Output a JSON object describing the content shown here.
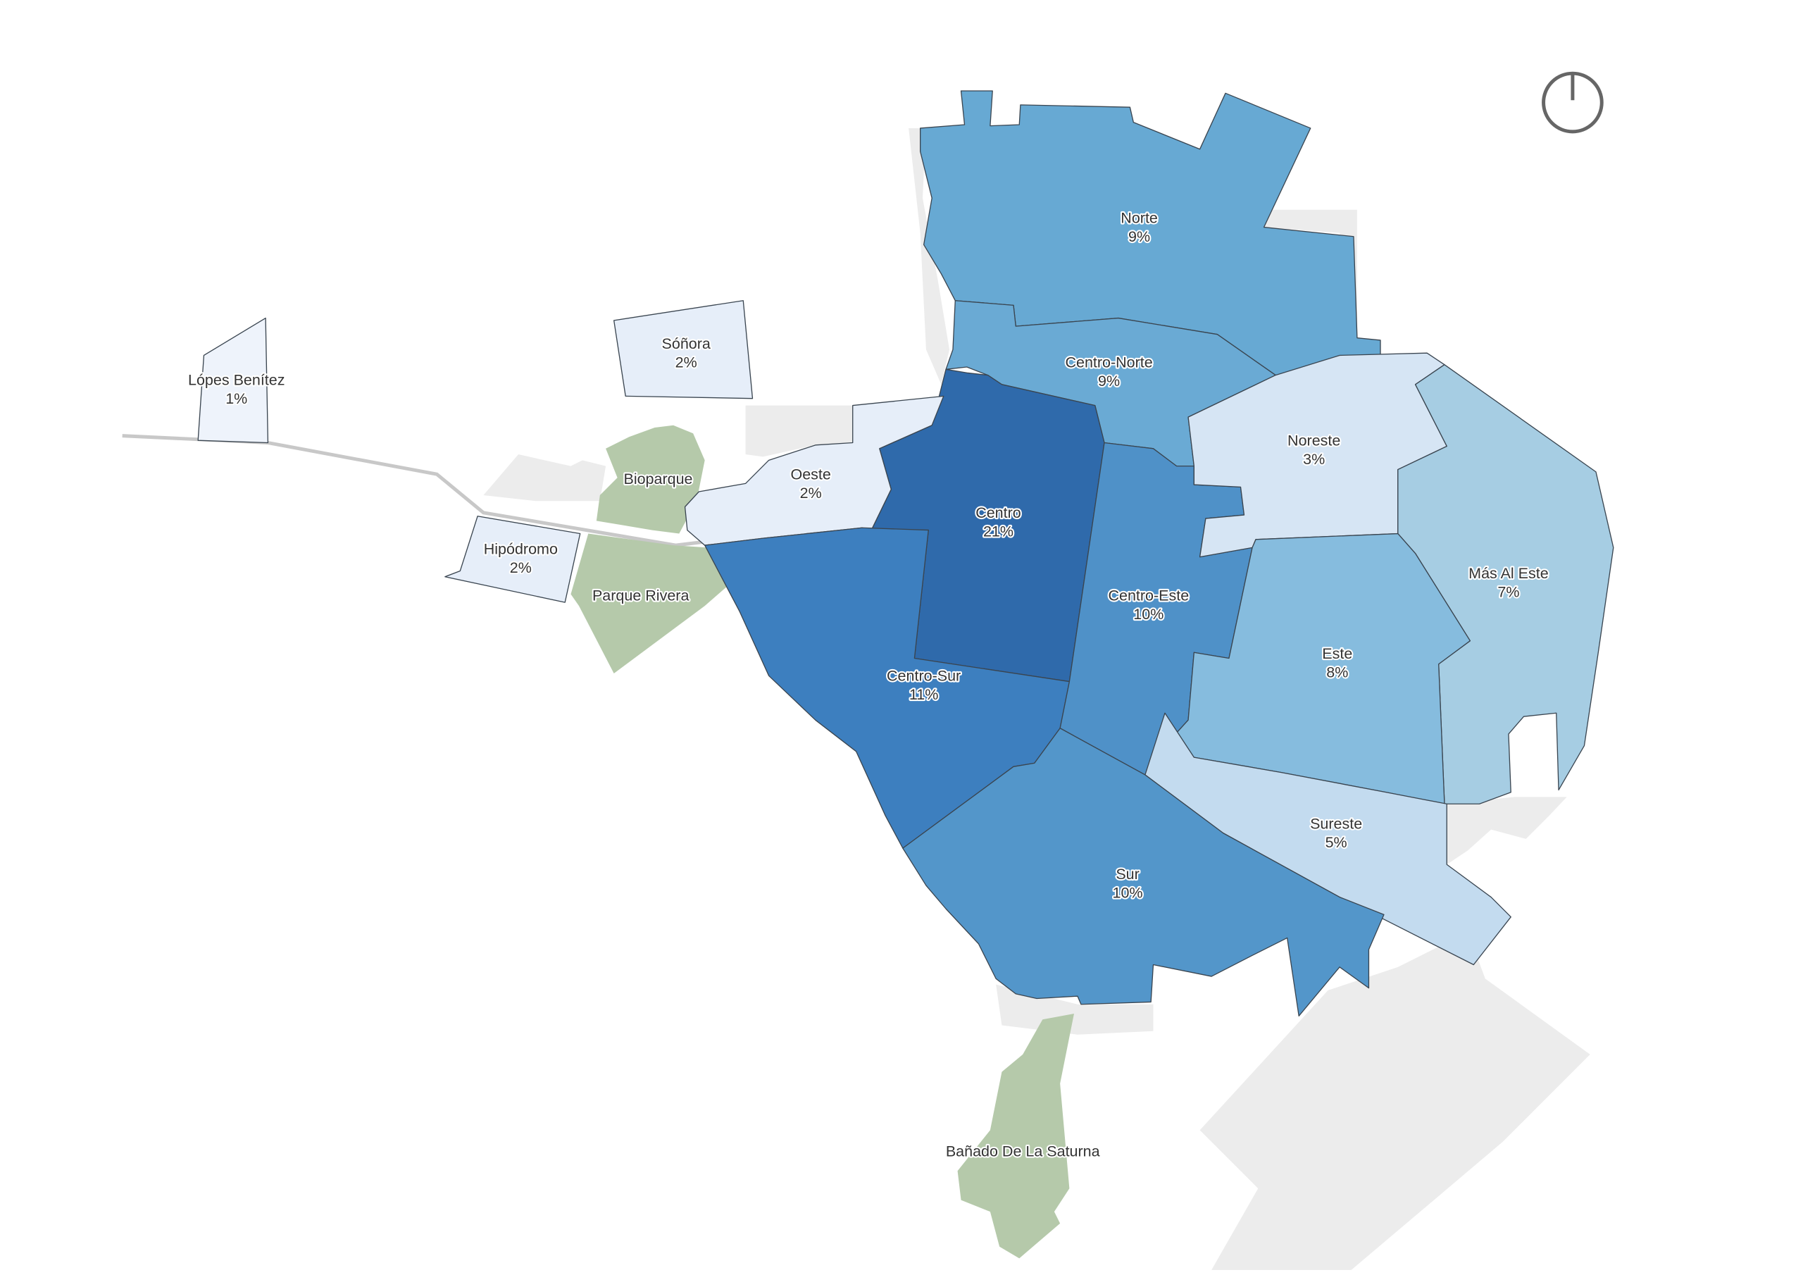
{
  "chart_data": {
    "type": "choropleth",
    "categories": [
      "Norte",
      "Centro-Norte",
      "Centro",
      "Oeste",
      "Centro-Sur",
      "Centro-Este",
      "Noreste",
      "Más Al Este",
      "Este",
      "Sureste",
      "Sur",
      "Lópes Benítez",
      "Sóñora",
      "Hipódromo"
    ],
    "values": [
      9,
      9,
      21,
      2,
      11,
      10,
      3,
      7,
      8,
      5,
      10,
      1,
      2,
      2
    ],
    "value_labels": [
      "9%",
      "9%",
      "21%",
      "2%",
      "11%",
      "10%",
      "3%",
      "7%",
      "8%",
      "5%",
      "10%",
      "1%",
      "2%",
      "2%"
    ],
    "colors": [
      "#67a9d3",
      "#6aaad4",
      "#2f6aab",
      "#e6eef9",
      "#3d7fbf",
      "#4f91c8",
      "#d6e5f4",
      "#a6cde3",
      "#86bcde",
      "#c3dbef",
      "#5396ca",
      "#eef3fb",
      "#e6eef9",
      "#e6eef9"
    ],
    "parks": {
      "names": [
        "Bioparque",
        "Parque Rivera",
        "Bañado De La Saturna"
      ],
      "color": "#b5c9aa"
    }
  }
}
